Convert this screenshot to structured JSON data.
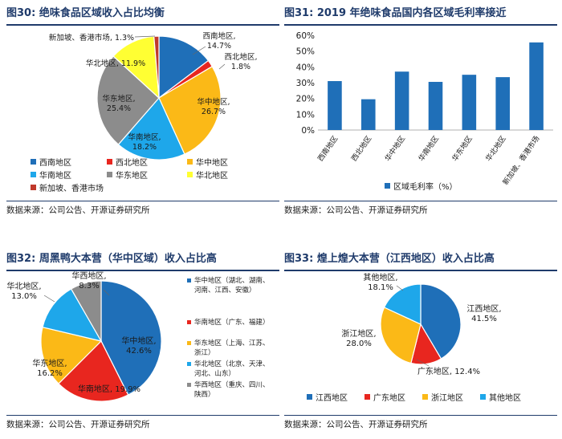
{
  "source_note": "数据来源：公司公告、开源证券研究所",
  "colors": {
    "blue_dark": "#1f6fb8",
    "red": "#e8261f",
    "orange": "#fbb917",
    "cyan": "#1ea7ea",
    "gray": "#8c8c8c",
    "yellow": "#ffff33",
    "deep_red": "#c0392b",
    "bar_blue": "#1f6fb8",
    "title": "#1f3b6b"
  },
  "chart_data": [
    {
      "type": "pie",
      "id": "fig30",
      "title": "图30:  绝味食品区域收入占比均衡",
      "categories": [
        "西南地区",
        "西北地区",
        "华中地区",
        "华南地区",
        "华东地区",
        "华北地区",
        "新加坡、香港市场"
      ],
      "values": [
        14.7,
        1.8,
        26.7,
        18.2,
        25.4,
        11.9,
        1.3
      ],
      "labels": [
        "西南地区,",
        "西北地区,",
        "华中地区,",
        "华南地区,",
        "华东地区,",
        "华北地区, 11.9%",
        "新加坡、香港市场, 1.3%"
      ],
      "value_labels": [
        "14.7%",
        "1.8%",
        "26.7%",
        "18.2%",
        "25.4%",
        "",
        ""
      ],
      "colors": [
        "#1f6fb8",
        "#e8261f",
        "#fbb917",
        "#1ea7ea",
        "#8c8c8c",
        "#ffff33",
        "#c0392b"
      ],
      "legend": "bottom"
    },
    {
      "type": "bar",
      "id": "fig31",
      "title": "图31:  2019 年绝味食品国内各区域毛利率接近",
      "categories": [
        "西南地区",
        "西北地区",
        "华中地区",
        "华南地区",
        "华东地区",
        "华北地区",
        "新加坡、香港市场"
      ],
      "series": [
        {
          "name": "区域毛利率（%）",
          "values": [
            31,
            19.5,
            37,
            30.5,
            35,
            33.5,
            55.5
          ]
        }
      ],
      "ylim": [
        0,
        60
      ],
      "yticks": [
        "0%",
        "10%",
        "20%",
        "30%",
        "40%",
        "50%",
        "60%"
      ],
      "legend": "bottom"
    },
    {
      "type": "pie",
      "id": "fig32",
      "title": "图32:  周黑鸭大本营（华中区域）收入占比高",
      "categories": [
        "华中地区",
        "华南地区",
        "华东地区",
        "华北地区",
        "华西地区"
      ],
      "values": [
        42.6,
        19.9,
        16.2,
        13.0,
        8.3
      ],
      "labels": [
        "华中地区,",
        "华南地区, 19.9%",
        "华东地区,",
        "华北地区,",
        "华西地区,"
      ],
      "value_labels": [
        "42.6%",
        "",
        "16.2%",
        "13.0%",
        "8.3%"
      ],
      "legend_entries": [
        "华中地区（湖北、湖南、河南、江西、安徽）",
        "华南地区（广东、福建）",
        "华东地区（上海、江苏、浙江）",
        "华北地区（北京、天津、河北、山东）",
        "华西地区（重庆、四川、陕西）"
      ],
      "colors": [
        "#1f6fb8",
        "#e8261f",
        "#fbb917",
        "#1ea7ea",
        "#8c8c8c"
      ],
      "legend": "right"
    },
    {
      "type": "pie",
      "id": "fig33",
      "title": "图33:  煌上煌大本营（江西地区）收入占比高",
      "categories": [
        "江西地区",
        "广东地区",
        "浙江地区",
        "其他地区"
      ],
      "values": [
        41.5,
        12.4,
        28.0,
        18.1
      ],
      "labels": [
        "江西地区,",
        "广东地区, 12.4%",
        "浙江地区,",
        "其他地区,"
      ],
      "value_labels": [
        "41.5%",
        "",
        "28.0%",
        "18.1%"
      ],
      "colors": [
        "#1f6fb8",
        "#e8261f",
        "#fbb917",
        "#1ea7ea"
      ],
      "legend": "bottom"
    }
  ]
}
